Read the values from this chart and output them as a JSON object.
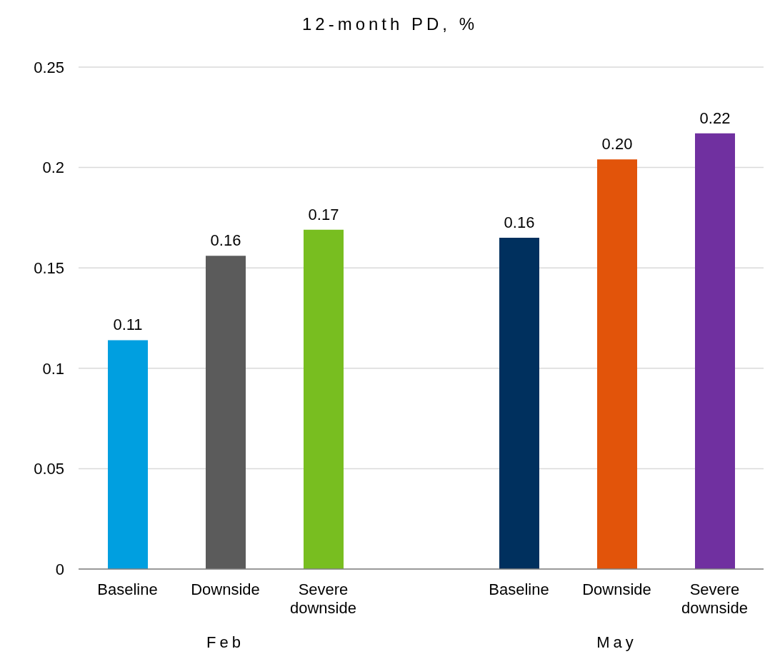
{
  "chart_data": {
    "type": "bar",
    "title": "12-month PD, %",
    "categories": [
      "Baseline",
      "Downside",
      "Severe downside",
      null,
      "Baseline",
      "Downside",
      "Severe downside"
    ],
    "values": [
      0.114,
      0.156,
      0.169,
      null,
      0.165,
      0.204,
      0.217
    ],
    "colors": [
      "#009fe0",
      "#5b5b5b",
      "#78be20",
      null,
      "#00305e",
      "#e2540a",
      "#7030a0"
    ],
    "value_labels": [
      "0.11",
      "0.16",
      "0.17",
      null,
      "0.16",
      "0.20",
      "0.22"
    ],
    "ylim": [
      0,
      0.25
    ],
    "yticks": [
      0,
      0.05,
      0.1,
      0.15,
      0.2,
      0.25
    ],
    "grid": "y",
    "annotations": [
      "Feb",
      "May"
    ]
  }
}
